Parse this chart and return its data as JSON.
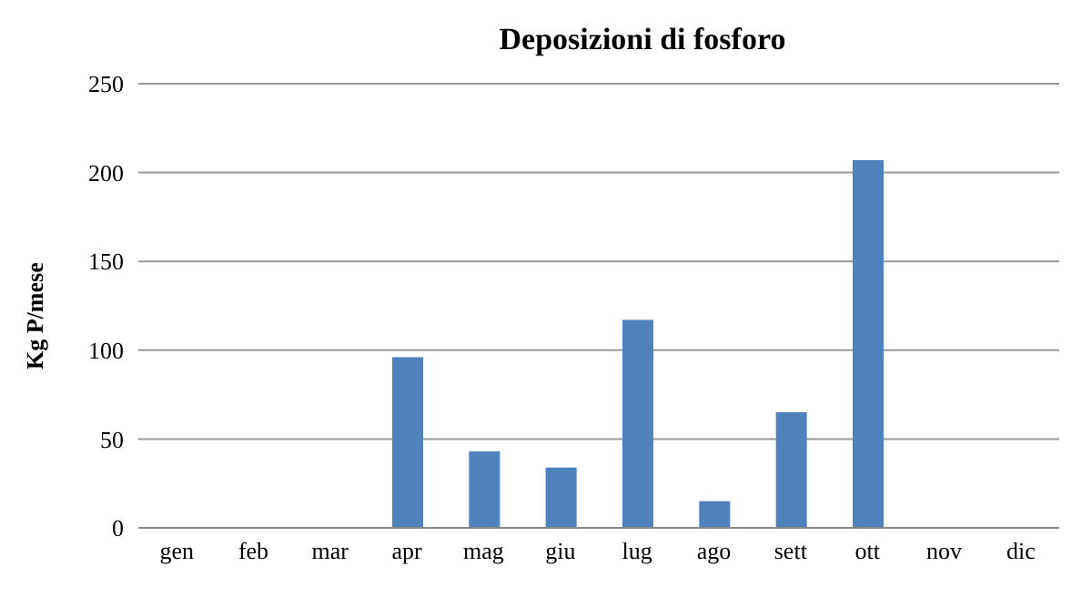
{
  "chart_data": {
    "type": "bar",
    "title": "Deposizioni di fosforo",
    "ylabel": "Kg P/mese",
    "categories": [
      "gen",
      "feb",
      "mar",
      "apr",
      "mag",
      "giu",
      "lug",
      "ago",
      "sett",
      "ott",
      "nov",
      "dic"
    ],
    "values": [
      0,
      0,
      0,
      96,
      43,
      34,
      117,
      15,
      65,
      207,
      0,
      0
    ],
    "color": "#4f81bd",
    "ylim": [
      0,
      250
    ],
    "yticks": [
      0,
      50,
      100,
      150,
      200,
      250
    ],
    "grid": "y"
  }
}
